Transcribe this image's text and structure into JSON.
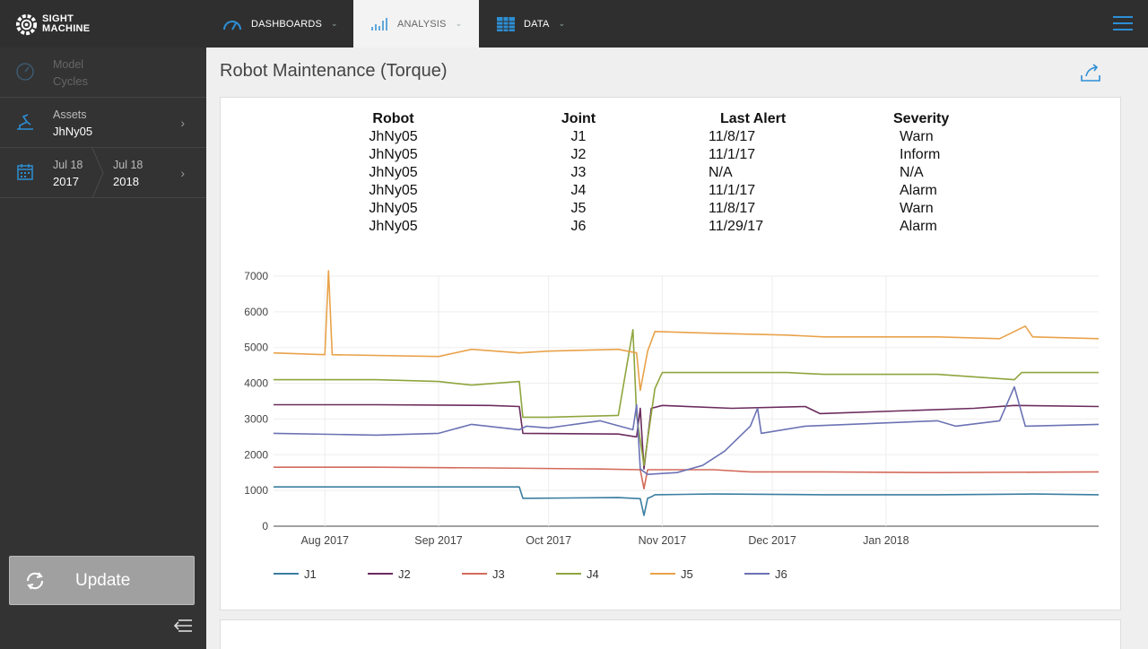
{
  "brand": {
    "line1": "SIGHT",
    "line2": "MACHINE"
  },
  "nav": {
    "tabs": [
      {
        "label": "DASHBOARDS",
        "icon": "gauge-icon"
      },
      {
        "label": "ANALYSIS",
        "icon": "bar-chart-icon",
        "active": true
      },
      {
        "label": "DATA",
        "icon": "table-icon"
      }
    ],
    "accent": "#2d8fd5"
  },
  "sidebar": {
    "model": {
      "label": "Model",
      "value": "Cycles"
    },
    "assets": {
      "label": "Assets",
      "value": "JhNy05"
    },
    "date_range": {
      "start_label": "Jul 18",
      "start_year": "2017",
      "end_label": "Jul 18",
      "end_year": "2018"
    },
    "update_label": "Update"
  },
  "page": {
    "title": "Robot Maintenance (Torque)"
  },
  "alerts_table": {
    "headers": [
      "Robot",
      "Joint",
      "Last Alert",
      "Severity"
    ],
    "rows": [
      [
        "JhNy05",
        "J1",
        "11/8/17",
        "Warn"
      ],
      [
        "JhNy05",
        "J2",
        "11/1/17",
        "Inform"
      ],
      [
        "JhNy05",
        "J3",
        "N/A",
        "N/A"
      ],
      [
        "JhNy05",
        "J4",
        "11/1/17",
        "Alarm"
      ],
      [
        "JhNy05",
        "J5",
        "11/8/17",
        "Warn"
      ],
      [
        "JhNy05",
        "J6",
        "11/29/17",
        "Alarm"
      ]
    ]
  },
  "chart_data": {
    "type": "line",
    "title": "",
    "xlabel": "",
    "ylabel": "",
    "ylim": [
      0,
      7000
    ],
    "xlim": [
      "2017-07-18",
      "2018-02-28"
    ],
    "yticks": [
      0,
      1000,
      2000,
      3000,
      4000,
      5000,
      6000,
      7000
    ],
    "xticks": [
      {
        "date": "2017-08-01",
        "label": "Aug 2017"
      },
      {
        "date": "2017-09-01",
        "label": "Sep 2017"
      },
      {
        "date": "2017-10-01",
        "label": "Oct 2017"
      },
      {
        "date": "2017-11-01",
        "label": "Nov 2017"
      },
      {
        "date": "2017-12-01",
        "label": "Dec 2017"
      },
      {
        "date": "2018-01-01",
        "label": "Jan 2018"
      }
    ],
    "grid": true,
    "legend_position": "bottom",
    "series": [
      {
        "name": "J1",
        "color": "#3a7ea1",
        "points": [
          [
            "2017-07-18",
            1100
          ],
          [
            "2017-08-15",
            1100
          ],
          [
            "2017-09-15",
            1100
          ],
          [
            "2017-09-23",
            1100
          ],
          [
            "2017-09-24",
            780
          ],
          [
            "2017-10-20",
            800
          ],
          [
            "2017-10-26",
            770
          ],
          [
            "2017-10-27",
            300
          ],
          [
            "2017-10-28",
            780
          ],
          [
            "2017-10-29",
            820
          ],
          [
            "2017-10-30",
            880
          ],
          [
            "2017-11-15",
            900
          ],
          [
            "2017-12-15",
            880
          ],
          [
            "2018-01-15",
            880
          ],
          [
            "2018-02-10",
            900
          ],
          [
            "2018-02-28",
            880
          ]
        ]
      },
      {
        "name": "J2",
        "color": "#6b2c5e",
        "points": [
          [
            "2017-07-18",
            3400
          ],
          [
            "2017-08-15",
            3400
          ],
          [
            "2017-09-15",
            3380
          ],
          [
            "2017-09-23",
            3350
          ],
          [
            "2017-09-24",
            2600
          ],
          [
            "2017-10-20",
            2580
          ],
          [
            "2017-10-25",
            2500
          ],
          [
            "2017-10-26",
            3300
          ],
          [
            "2017-10-27",
            1600
          ],
          [
            "2017-10-29",
            3300
          ],
          [
            "2017-11-01",
            3380
          ],
          [
            "2017-11-20",
            3300
          ],
          [
            "2017-12-10",
            3350
          ],
          [
            "2017-12-14",
            3150
          ],
          [
            "2018-01-25",
            3300
          ],
          [
            "2018-02-05",
            3380
          ],
          [
            "2018-02-28",
            3350
          ]
        ]
      },
      {
        "name": "J3",
        "color": "#d46a5b",
        "points": [
          [
            "2017-07-18",
            1650
          ],
          [
            "2017-08-15",
            1650
          ],
          [
            "2017-09-15",
            1630
          ],
          [
            "2017-10-15",
            1600
          ],
          [
            "2017-10-26",
            1580
          ],
          [
            "2017-10-27",
            1050
          ],
          [
            "2017-10-28",
            1580
          ],
          [
            "2017-11-15",
            1580
          ],
          [
            "2017-11-25",
            1520
          ],
          [
            "2017-12-15",
            1520
          ],
          [
            "2018-01-15",
            1500
          ],
          [
            "2018-02-28",
            1520
          ]
        ]
      },
      {
        "name": "J4",
        "color": "#8fa53e",
        "points": [
          [
            "2017-07-18",
            4100
          ],
          [
            "2017-08-15",
            4100
          ],
          [
            "2017-09-01",
            4050
          ],
          [
            "2017-09-10",
            3950
          ],
          [
            "2017-09-23",
            4050
          ],
          [
            "2017-09-24",
            3050
          ],
          [
            "2017-10-01",
            3050
          ],
          [
            "2017-10-20",
            3100
          ],
          [
            "2017-10-24",
            5500
          ],
          [
            "2017-10-25",
            3100
          ],
          [
            "2017-10-27",
            1700
          ],
          [
            "2017-10-30",
            3850
          ],
          [
            "2017-11-01",
            4300
          ],
          [
            "2017-11-20",
            4300
          ],
          [
            "2017-12-05",
            4300
          ],
          [
            "2017-12-15",
            4250
          ],
          [
            "2018-01-15",
            4250
          ],
          [
            "2018-02-05",
            4100
          ],
          [
            "2018-02-07",
            4300
          ],
          [
            "2018-02-28",
            4300
          ]
        ]
      },
      {
        "name": "J5",
        "color": "#e9a24a",
        "points": [
          [
            "2017-07-18",
            4850
          ],
          [
            "2017-08-01",
            4800
          ],
          [
            "2017-08-02",
            7150
          ],
          [
            "2017-08-03",
            4800
          ],
          [
            "2017-09-01",
            4750
          ],
          [
            "2017-09-10",
            4950
          ],
          [
            "2017-09-23",
            4850
          ],
          [
            "2017-10-01",
            4900
          ],
          [
            "2017-10-20",
            4950
          ],
          [
            "2017-10-25",
            4850
          ],
          [
            "2017-10-26",
            3800
          ],
          [
            "2017-10-28",
            4900
          ],
          [
            "2017-10-30",
            5450
          ],
          [
            "2017-11-15",
            5400
          ],
          [
            "2017-12-05",
            5350
          ],
          [
            "2017-12-15",
            5300
          ],
          [
            "2018-01-15",
            5300
          ],
          [
            "2018-02-01",
            5250
          ],
          [
            "2018-02-08",
            5600
          ],
          [
            "2018-02-10",
            5300
          ],
          [
            "2018-02-28",
            5250
          ]
        ]
      },
      {
        "name": "J6",
        "color": "#6b72b4",
        "points": [
          [
            "2017-07-18",
            2600
          ],
          [
            "2017-08-15",
            2550
          ],
          [
            "2017-09-01",
            2600
          ],
          [
            "2017-09-10",
            2850
          ],
          [
            "2017-09-23",
            2700
          ],
          [
            "2017-09-25",
            2800
          ],
          [
            "2017-10-01",
            2750
          ],
          [
            "2017-10-15",
            2950
          ],
          [
            "2017-10-24",
            2700
          ],
          [
            "2017-10-25",
            3400
          ],
          [
            "2017-10-26",
            1600
          ],
          [
            "2017-10-28",
            1450
          ],
          [
            "2017-11-05",
            1500
          ],
          [
            "2017-11-12",
            1700
          ],
          [
            "2017-11-18",
            2100
          ],
          [
            "2017-11-25",
            2800
          ],
          [
            "2017-11-27",
            3300
          ],
          [
            "2017-11-28",
            2600
          ],
          [
            "2017-12-10",
            2800
          ],
          [
            "2018-01-15",
            2950
          ],
          [
            "2018-01-20",
            2800
          ],
          [
            "2018-02-01",
            2950
          ],
          [
            "2018-02-05",
            3900
          ],
          [
            "2018-02-08",
            2800
          ],
          [
            "2018-02-28",
            2850
          ]
        ]
      }
    ]
  }
}
